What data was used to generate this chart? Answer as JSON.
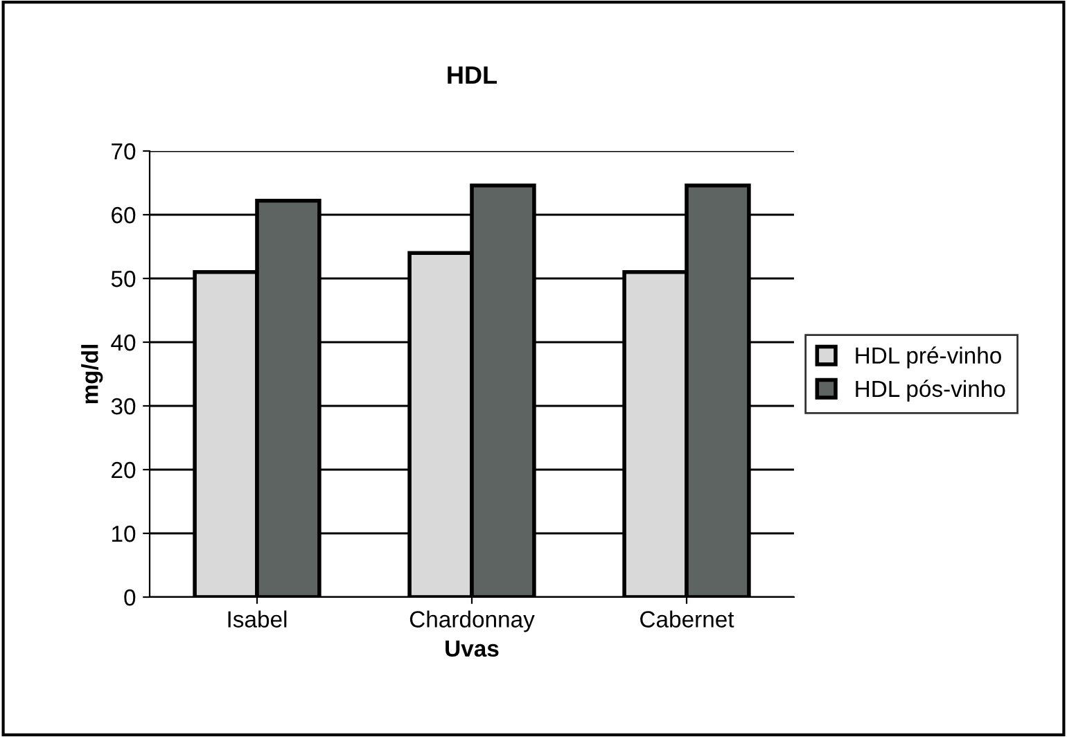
{
  "chart_data": {
    "type": "bar",
    "title": "HDL",
    "xlabel": "Uvas",
    "ylabel": "mg/dl",
    "categories": [
      "Isabel",
      "Chardonnay",
      "Cabernet"
    ],
    "series": [
      {
        "name": "HDL pré-vinho",
        "color": "#d9d9d9",
        "values": [
          51,
          54,
          51
        ]
      },
      {
        "name": "HDL pós-vinho",
        "color": "#5d6462",
        "values": [
          62.2,
          64.6,
          64.6
        ]
      }
    ],
    "ylim": [
      0,
      70
    ],
    "yticks": [
      0,
      10,
      20,
      30,
      40,
      50,
      60,
      70
    ],
    "grid": "y",
    "legend": "right"
  }
}
